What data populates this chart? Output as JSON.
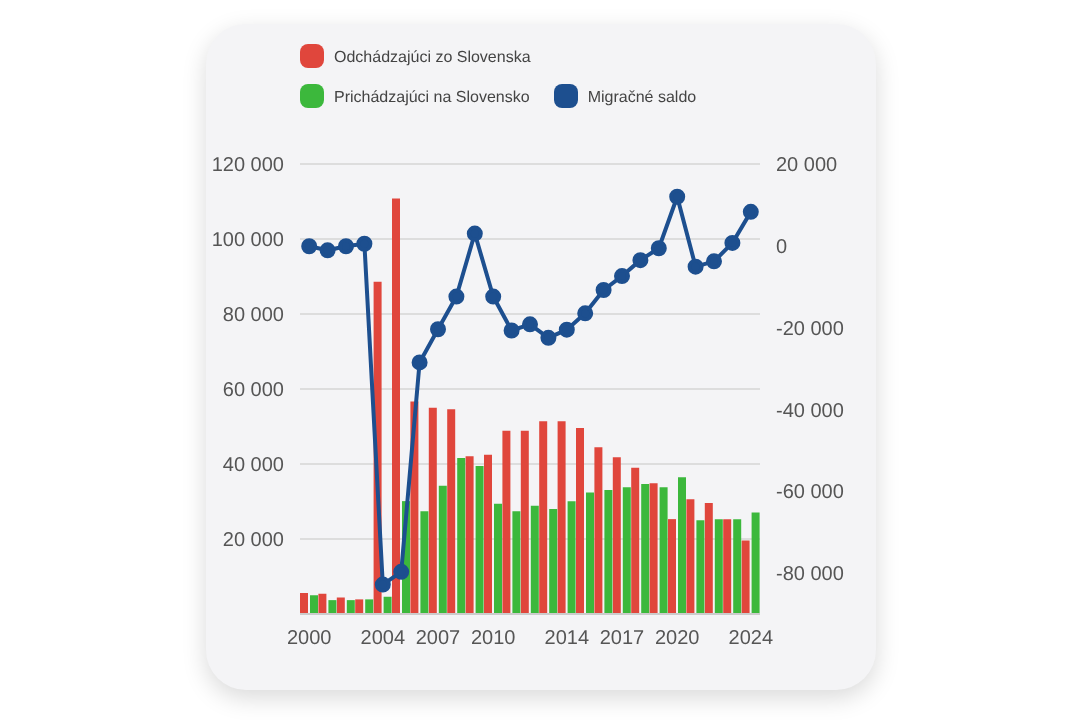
{
  "chart_data": {
    "type": "bar",
    "categories": [
      "2000",
      null,
      null,
      null,
      "2004",
      null,
      null,
      "2007",
      null,
      null,
      "2010",
      null,
      null,
      null,
      "2014",
      null,
      null,
      "2017",
      null,
      null,
      "2020",
      null,
      null,
      null,
      "2024"
    ],
    "series": [
      {
        "name": "Odchádzajúci zo Slovenska",
        "color": "#e0463c",
        "values": [
          5600,
          5400,
          4400,
          3900,
          88600,
          110800,
          56700,
          55000,
          54600,
          42100,
          42500,
          48900,
          48900,
          51400,
          51400,
          49600,
          44500,
          41800,
          39000,
          34900,
          25300,
          30600,
          29600,
          25300,
          19600
        ]
      },
      {
        "name": "Prichádzajúci na Slovensko",
        "color": "#3cb83c",
        "values": [
          5000,
          3700,
          3700,
          3900,
          4600,
          30100,
          27400,
          34200,
          41600,
          39500,
          29400,
          27400,
          28900,
          28000,
          30100,
          32400,
          33100,
          33800,
          34700,
          33800,
          36500,
          25000,
          25300,
          25300,
          27100
        ]
      },
      {
        "name": "Migračné saldo",
        "type": "line",
        "axis": "y2",
        "color": "#1d4f8f",
        "marker": "circle",
        "values": [
          -100,
          -1100,
          -100,
          500,
          -82800,
          -79700,
          -28500,
          -20400,
          -12400,
          3000,
          -12400,
          -20700,
          -19200,
          -22500,
          -20500,
          -16500,
          -10800,
          -7400,
          -3500,
          -600,
          12000,
          -5100,
          -3800,
          700,
          8300
        ]
      }
    ],
    "ylim": [
      0,
      120000
    ],
    "yticks": [
      {
        "value": 20000,
        "label": "20 000"
      },
      {
        "value": 40000,
        "label": "40 000"
      },
      {
        "value": 60000,
        "label": "60 000"
      },
      {
        "value": 80000,
        "label": "80 000"
      },
      {
        "value": 100000,
        "label": "100 000"
      },
      {
        "value": 120000,
        "label": "120 000"
      }
    ],
    "y2lim": [
      -90000,
      20000
    ],
    "y2ticks": [
      {
        "value": -80000,
        "label": "-80 000"
      },
      {
        "value": -60000,
        "label": "-60 000"
      },
      {
        "value": -40000,
        "label": "-40 000"
      },
      {
        "value": -20000,
        "label": "-20 000"
      },
      {
        "value": 0,
        "label": "0"
      },
      {
        "value": 20000,
        "label": "20 000"
      }
    ],
    "grid": "y",
    "legend": "top"
  }
}
